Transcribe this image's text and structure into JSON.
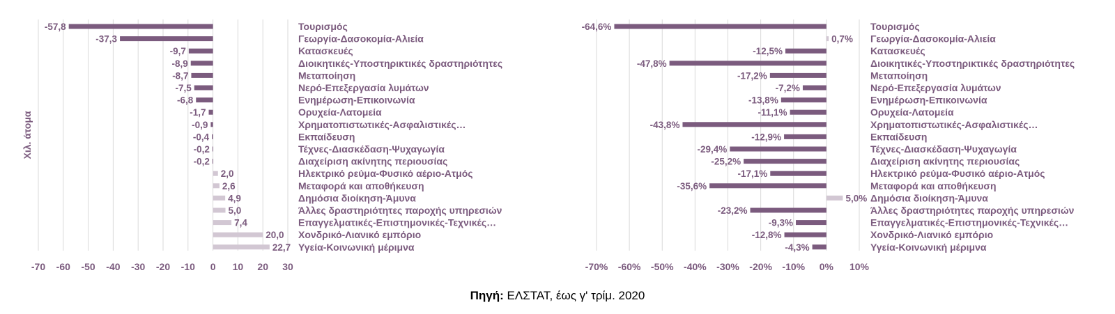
{
  "colors": {
    "negative": "#7b5b7e",
    "positive": "#d2c7d3",
    "text": "#7b5b7e",
    "grid": "#d9d9d9"
  },
  "categories": [
    "Τουρισμός",
    "Γεωργία-Δασοκομία-Αλιεία",
    "Κατασκευές",
    "Διοικητικές-Υποστηρικτικές δραστηριότητες",
    "Μεταποίηση",
    "Νερό-Επεξεργασία λυμάτων",
    "Ενημέρωση-Επικοινωνία",
    "Ορυχεία-Λατομεία",
    "Χρηματοπιστωτικές-Ασφαλιστικές…",
    "Εκπαίδευση",
    "Τέχνες-Διασκέδαση-Ψυχαγωγία",
    "Διαχείριση ακίνητης περιουσίας",
    "Ηλεκτρικό ρεύμα-Φυσικό αέριο-Ατμός",
    "Μεταφορά και αποθήκευση",
    "Δημόσια διοίκηση-Άμυνα",
    "Άλλες δραστηριότητες παροχής υπηρεσιών",
    "Επαγγελματικές-Επιστημονικές-Τεχνικές…",
    "Χονδρικό-Λιανικό εμπόριο",
    "Υγεία-Κοινωνική μέριμνα"
  ],
  "chart_data": [
    {
      "type": "bar",
      "orientation": "horizontal",
      "ylabel": "Χιλ. άτομα",
      "xlim": [
        -70,
        30
      ],
      "xticks": [
        -70,
        -60,
        -50,
        -40,
        -30,
        -20,
        -10,
        0,
        10,
        20,
        30
      ],
      "xtick_labels": [
        "-70",
        "-60",
        "-50",
        "-40",
        "-30",
        "-20",
        "-10",
        "0",
        "10",
        "20",
        "30"
      ],
      "values": [
        -57.8,
        -37.3,
        -9.7,
        -8.9,
        -8.7,
        -7.5,
        -6.8,
        -1.7,
        -0.9,
        -0.4,
        -0.2,
        -0.2,
        2.0,
        2.6,
        4.9,
        5.0,
        7.4,
        20.0,
        22.7
      ],
      "value_labels": [
        "-57,8",
        "-37,3",
        "-9,7",
        "-8,9",
        "-8,7",
        "-7,5",
        "-6,8",
        "-1,7",
        "-0,9",
        "-0,4",
        "-0,2",
        "-0,2",
        "2,0",
        "2,6",
        "4,9",
        "5,0",
        "7,4",
        "20,0",
        "22,7"
      ],
      "grid": true
    },
    {
      "type": "bar",
      "orientation": "horizontal",
      "xlim": [
        -70,
        10
      ],
      "xticks": [
        -70,
        -60,
        -50,
        -40,
        -30,
        -20,
        -10,
        0,
        10
      ],
      "xtick_labels": [
        "-70%",
        "-60%",
        "-50%",
        "-40%",
        "-30%",
        "-20%",
        "-10%",
        "0%",
        "10%"
      ],
      "values": [
        -64.6,
        0.7,
        -12.5,
        -47.8,
        -17.2,
        -7.2,
        -13.8,
        -11.1,
        -43.8,
        -12.9,
        -29.4,
        -25.2,
        -17.1,
        -35.6,
        5.0,
        -23.2,
        -9.3,
        -12.8,
        -4.3
      ],
      "value_labels": [
        "-64,6%",
        "0,7%",
        "-12,5%",
        "-47,8%",
        "-17,2%",
        "-7,2%",
        "-13,8%",
        "-11,1%",
        "-43,8%",
        "-12,9%",
        "-29,4%",
        "-25,2%",
        "-17,1%",
        "-35,6%",
        "5,0%",
        "-23,2%",
        "-9,3%",
        "-12,8%",
        "-4,3%"
      ],
      "grid": true
    }
  ],
  "source": {
    "label": "Πηγή:",
    "text": " ΕΛΣΤΑΤ, έως γ' τρίμ. 2020"
  }
}
